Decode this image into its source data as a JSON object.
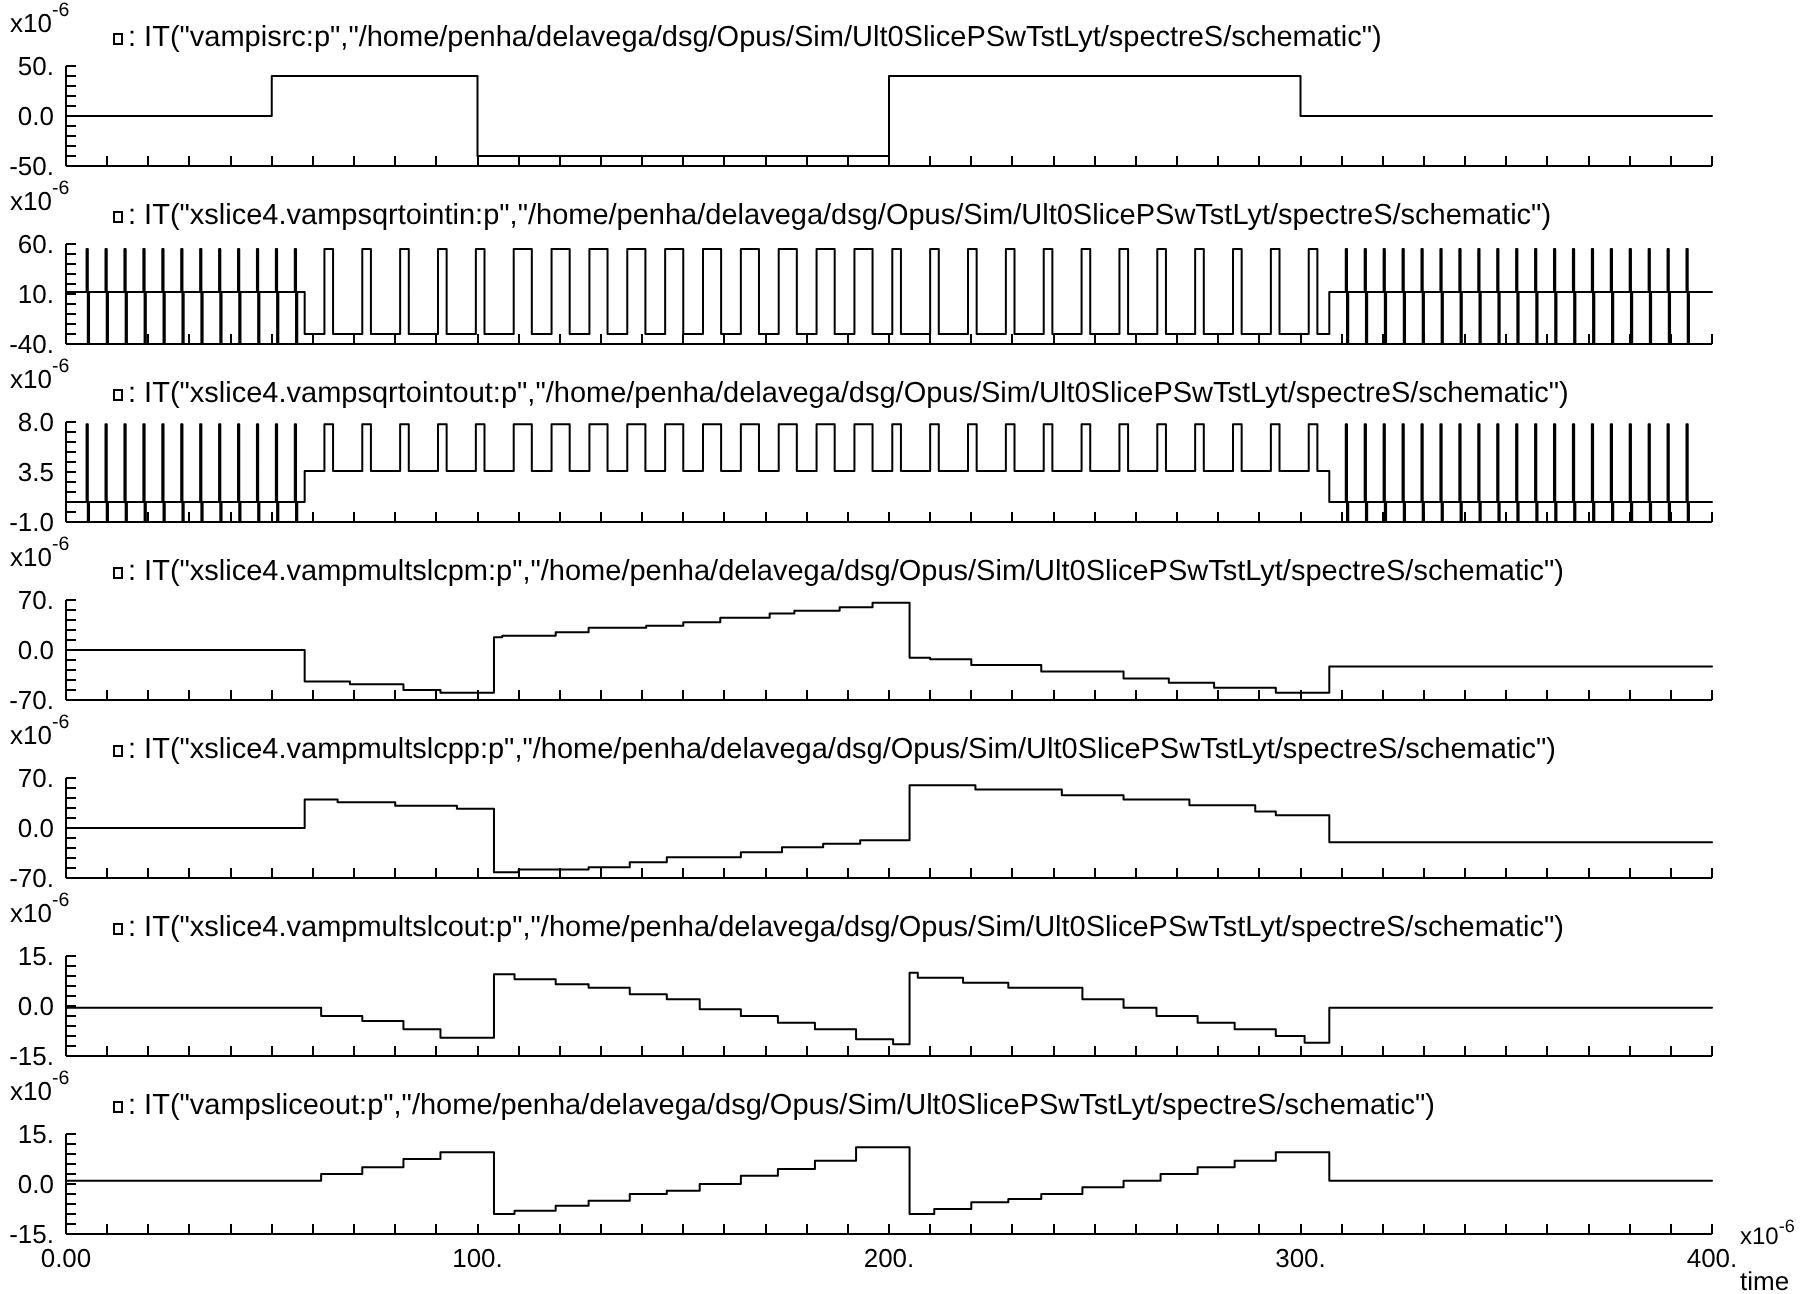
{
  "chart_data": [
    {
      "type": "step",
      "ylabel": "x10$^{-6}$",
      "legend": "top left",
      "tick_labels": "y",
      "xlim": [
        0,
        400
      ],
      "ylim": [
        -50,
        50
      ],
      "yticks": [
        {
          "value": -50,
          "label": "-50."
        },
        {
          "value": -40,
          "label": null
        },
        {
          "value": -30,
          "label": null
        },
        {
          "value": -20,
          "label": null
        },
        {
          "value": -10,
          "label": null
        },
        {
          "value": 0,
          "label": "0.0"
        },
        {
          "value": 10,
          "label": null
        },
        {
          "value": 20,
          "label": null
        },
        {
          "value": 30,
          "label": null
        },
        {
          "value": 40,
          "label": null
        },
        {
          "value": 50,
          "label": "50."
        }
      ],
      "series": [
        {
          "name": ": IT(\"vampisrc:p\",\"/home/penha/delavega/dsg/Opus/Sim/Ult0SlicePSwTstLyt/spectreS/schematic\")",
          "color": "#000000",
          "x": [
            0,
            50,
            100,
            200,
            300,
            400
          ],
          "values": [
            0,
            40,
            -40,
            40,
            0,
            0
          ]
        }
      ]
    },
    {
      "type": "step",
      "ylabel": "x10$^{-6}$",
      "legend": "top left",
      "tick_labels": "y",
      "xlim": [
        0,
        400
      ],
      "ylim": [
        -40,
        60
      ],
      "yticks": [
        {
          "value": -40,
          "label": "-40."
        },
        {
          "value": -30,
          "label": null
        },
        {
          "value": -20,
          "label": null
        },
        {
          "value": -10,
          "label": null
        },
        {
          "value": 0,
          "label": null
        },
        {
          "value": 10,
          "label": "10."
        },
        {
          "value": 20,
          "label": null
        },
        {
          "value": 30,
          "label": null
        },
        {
          "value": 40,
          "label": null
        },
        {
          "value": 50,
          "label": null
        },
        {
          "value": 60,
          "label": "60."
        }
      ],
      "series": [
        {
          "name": ": IT(\"xslice4.vampsqrtointin:p\",\"/home/penha/delavega/dsg/Opus/Sim/Ult0SlicePSwTstLyt/spectreS/schematic\")",
          "color": "#000000",
          "x": [
            0,
            5,
            5.3,
            5.6,
            9.6,
            9.9,
            10.2,
            14.2,
            14.5,
            14.8,
            18.8,
            19.1,
            19.4,
            23.4,
            23.7,
            24,
            28,
            28.3,
            28.6,
            32.6,
            32.9,
            33.2,
            37.2,
            37.5,
            37.8,
            41.8,
            42.1,
            42.4,
            46.4,
            46.7,
            47,
            51,
            51.3,
            51.6,
            55.6,
            55.9,
            56.2,
            58,
            62.8,
            64.9,
            72,
            74.1,
            81.2,
            83.3,
            90.4,
            92.5,
            99.6,
            101.7,
            108.8,
            113.2,
            118,
            122.4,
            127.2,
            131.6,
            136.4,
            140.8,
            145.6,
            150,
            154.8,
            159.2,
            164,
            168.4,
            173.2,
            177.6,
            182.4,
            186.8,
            191.6,
            196,
            200.8,
            202.9,
            210,
            212.1,
            219.2,
            221.3,
            228.4,
            230.5,
            237.6,
            239.7,
            246.8,
            248.9,
            256,
            258.1,
            265.2,
            267.3,
            274.4,
            276.5,
            283.6,
            285.7,
            292.8,
            294.9,
            302,
            304.1,
            307,
            311,
            311.3,
            311.6,
            315.6,
            315.9,
            316.2,
            320.2,
            320.5,
            320.8,
            324.8,
            325.1,
            325.4,
            329.4,
            329.7,
            330,
            334,
            334.3,
            334.6,
            338.6,
            338.9,
            339.2,
            343.2,
            343.5,
            343.8,
            347.8,
            348.1,
            348.4,
            352.4,
            352.7,
            353,
            357,
            357.3,
            357.6,
            361.6,
            361.9,
            362.2,
            366.2,
            366.5,
            366.8,
            370.8,
            371.1,
            371.4,
            375.4,
            375.7,
            376,
            380,
            380.3,
            380.6,
            384.6,
            384.9,
            385.2,
            389.2,
            389.5,
            389.8,
            393.8,
            394.1,
            394.4,
            400
          ],
          "values": [
            12,
            55,
            -39,
            12,
            55,
            -39,
            12,
            55,
            -39,
            12,
            55,
            -39,
            12,
            55,
            -39,
            12,
            55,
            -39,
            12,
            55,
            -39,
            12,
            55,
            -39,
            12,
            55,
            -39,
            12,
            55,
            -39,
            12,
            55,
            -39,
            12,
            55,
            -39,
            12,
            -30,
            55,
            -30,
            55,
            -30,
            55,
            -30,
            55,
            -30,
            55,
            -30,
            55,
            -30,
            55,
            -30,
            55,
            -30,
            55,
            -30,
            55,
            -30,
            55,
            -30,
            55,
            -30,
            55,
            -30,
            55,
            -30,
            55,
            -30,
            55,
            -30,
            55,
            -30,
            55,
            -30,
            55,
            -30,
            55,
            -30,
            55,
            -30,
            55,
            -30,
            55,
            -30,
            55,
            -30,
            55,
            -30,
            55,
            -30,
            55,
            -30,
            12,
            55,
            -39,
            12,
            55,
            -39,
            12,
            55,
            -39,
            12,
            55,
            -39,
            12,
            55,
            -39,
            12,
            55,
            -39,
            12,
            55,
            -39,
            12,
            55,
            -39,
            12,
            55,
            -39,
            12,
            55,
            -39,
            12,
            55,
            -39,
            12,
            55,
            -39,
            12,
            55,
            -39,
            12,
            55,
            -39,
            12,
            55,
            -39,
            12,
            55,
            -39,
            12,
            55,
            -39,
            12,
            55,
            -39,
            12,
            55,
            -39,
            12,
            12
          ]
        }
      ]
    },
    {
      "type": "step",
      "ylabel": "x10$^{-6}$",
      "legend": "top left",
      "tick_labels": "y",
      "xlim": [
        0,
        400
      ],
      "ylim": [
        -1,
        8
      ],
      "yticks": [
        {
          "value": -1,
          "label": "-1.0"
        },
        {
          "value": -0.1,
          "label": null
        },
        {
          "value": 0.8,
          "label": null
        },
        {
          "value": 1.7,
          "label": null
        },
        {
          "value": 2.6,
          "label": null
        },
        {
          "value": 3.5,
          "label": "3.5"
        },
        {
          "value": 4.4,
          "label": null
        },
        {
          "value": 5.3,
          "label": null
        },
        {
          "value": 6.2,
          "label": null
        },
        {
          "value": 7.1,
          "label": null
        },
        {
          "value": 8,
          "label": "8.0"
        }
      ],
      "series": [
        {
          "name": ": IT(\"xslice4.vampsqrtointout:p\",\"/home/penha/delavega/dsg/Opus/Sim/Ult0SlicePSwTstLyt/spectreS/schematic\")",
          "color": "#000000",
          "x": [
            0,
            5,
            5.3,
            5.6,
            9.6,
            9.9,
            10.2,
            14.2,
            14.5,
            14.8,
            18.8,
            19.1,
            19.4,
            23.4,
            23.7,
            24,
            28,
            28.3,
            28.6,
            32.6,
            32.9,
            33.2,
            37.2,
            37.5,
            37.8,
            41.8,
            42.1,
            42.4,
            46.4,
            46.7,
            47,
            51,
            51.3,
            51.6,
            55.6,
            55.9,
            56.2,
            58,
            62.8,
            64.9,
            72,
            74.1,
            81.2,
            83.3,
            90.4,
            92.5,
            99.6,
            101.7,
            108.8,
            113.2,
            118,
            122.4,
            127.2,
            131.6,
            136.4,
            140.8,
            145.6,
            150,
            154.8,
            159.2,
            164,
            168.4,
            173.2,
            177.6,
            182.4,
            186.8,
            191.6,
            196,
            200.8,
            202.9,
            210,
            212.1,
            219.2,
            221.3,
            228.4,
            230.5,
            237.6,
            239.7,
            246.8,
            248.9,
            256,
            258.1,
            265.2,
            267.3,
            274.4,
            276.5,
            283.6,
            285.7,
            292.8,
            294.9,
            302,
            304.1,
            307,
            311,
            311.3,
            311.6,
            315.6,
            315.9,
            316.2,
            320.2,
            320.5,
            320.8,
            324.8,
            325.1,
            325.4,
            329.4,
            329.7,
            330,
            334,
            334.3,
            334.6,
            338.6,
            338.9,
            339.2,
            343.2,
            343.5,
            343.8,
            347.8,
            348.1,
            348.4,
            352.4,
            352.7,
            353,
            357,
            357.3,
            357.6,
            361.6,
            361.9,
            362.2,
            366.2,
            366.5,
            366.8,
            370.8,
            371.1,
            371.4,
            375.4,
            375.7,
            376,
            380,
            380.3,
            380.6,
            384.6,
            384.9,
            385.2,
            389.2,
            389.5,
            389.8,
            393.8,
            394.1,
            394.4,
            400
          ],
          "values": [
            0.8,
            7.8,
            -0.9,
            0.8,
            7.8,
            -0.9,
            0.8,
            7.8,
            -0.9,
            0.8,
            7.8,
            -0.9,
            0.8,
            7.8,
            -0.9,
            0.8,
            7.8,
            -0.9,
            0.8,
            7.8,
            -0.9,
            0.8,
            7.8,
            -0.9,
            0.8,
            7.8,
            -0.9,
            0.8,
            7.8,
            -0.9,
            0.8,
            7.8,
            -0.9,
            0.8,
            7.8,
            -0.9,
            0.8,
            3.6,
            7.8,
            3.6,
            7.8,
            3.6,
            7.8,
            3.6,
            7.8,
            3.6,
            7.8,
            3.6,
            7.8,
            3.6,
            7.8,
            3.6,
            7.8,
            3.6,
            7.8,
            3.6,
            7.8,
            3.6,
            7.8,
            3.6,
            7.8,
            3.6,
            7.8,
            3.6,
            7.8,
            3.6,
            7.8,
            3.6,
            7.8,
            3.6,
            7.8,
            3.6,
            7.8,
            3.6,
            7.8,
            3.6,
            7.8,
            3.6,
            7.8,
            3.6,
            7.8,
            3.6,
            7.8,
            3.6,
            7.8,
            3.6,
            7.8,
            3.6,
            7.8,
            3.6,
            7.8,
            3.6,
            0.8,
            7.8,
            -0.9,
            0.8,
            7.8,
            -0.9,
            0.8,
            7.8,
            -0.9,
            0.8,
            7.8,
            -0.9,
            0.8,
            7.8,
            -0.9,
            0.8,
            7.8,
            -0.9,
            0.8,
            7.8,
            -0.9,
            0.8,
            7.8,
            -0.9,
            0.8,
            7.8,
            -0.9,
            0.8,
            7.8,
            -0.9,
            0.8,
            7.8,
            -0.9,
            0.8,
            7.8,
            -0.9,
            0.8,
            7.8,
            -0.9,
            0.8,
            7.8,
            -0.9,
            0.8,
            7.8,
            -0.9,
            0.8,
            7.8,
            -0.9,
            0.8,
            7.8,
            -0.9,
            0.8,
            7.8,
            -0.9,
            0.8,
            7.8,
            -0.9,
            0.8,
            0.8
          ]
        }
      ]
    },
    {
      "type": "step",
      "ylabel": "x10$^{-6}$",
      "legend": "top left",
      "tick_labels": "y",
      "xlim": [
        0,
        400
      ],
      "ylim": [
        -70,
        70
      ],
      "yticks": [
        {
          "value": -70,
          "label": "-70."
        },
        {
          "value": -56,
          "label": null
        },
        {
          "value": -42,
          "label": null
        },
        {
          "value": -28,
          "label": null
        },
        {
          "value": -14,
          "label": null
        },
        {
          "value": 0,
          "label": "0.0"
        },
        {
          "value": 14,
          "label": null
        },
        {
          "value": 28,
          "label": null
        },
        {
          "value": 42,
          "label": null
        },
        {
          "value": 56,
          "label": null
        },
        {
          "value": 70,
          "label": "70."
        }
      ],
      "series": [
        {
          "name": ": IT(\"xslice4.vampmultslcpm:p\",\"/home/penha/delavega/dsg/Opus/Sim/Ult0SlicePSwTstLyt/spectreS/schematic\")",
          "color": "#000000",
          "x": [
            0,
            58,
            69,
            82,
            91,
            104,
            106,
            119,
            127,
            141,
            150,
            159,
            171,
            177,
            188,
            196,
            205,
            210,
            220,
            237,
            257,
            268,
            279,
            294,
            307,
            400
          ],
          "values": [
            0,
            -44,
            -48,
            -56,
            -60,
            18,
            20,
            25,
            31,
            34,
            39,
            45,
            51,
            55,
            60,
            66,
            -11,
            -13,
            -21,
            -30,
            -40,
            -46,
            -53,
            -60,
            -23,
            -23
          ]
        }
      ]
    },
    {
      "type": "step",
      "ylabel": "x10$^{-6}$",
      "legend": "top left",
      "tick_labels": "y",
      "xlim": [
        0,
        400
      ],
      "ylim": [
        -70,
        70
      ],
      "yticks": [
        {
          "value": -70,
          "label": "-70."
        },
        {
          "value": -56,
          "label": null
        },
        {
          "value": -42,
          "label": null
        },
        {
          "value": -28,
          "label": null
        },
        {
          "value": -14,
          "label": null
        },
        {
          "value": 0,
          "label": "0.0"
        },
        {
          "value": 14,
          "label": null
        },
        {
          "value": 28,
          "label": null
        },
        {
          "value": 42,
          "label": null
        },
        {
          "value": 56,
          "label": null
        },
        {
          "value": 70,
          "label": "70."
        }
      ],
      "series": [
        {
          "name": ": IT(\"xslice4.vampmultslcpp:p\",\"/home/penha/delavega/dsg/Opus/Sim/Ult0SlicePSwTstLyt/spectreS/schematic\")",
          "color": "#000000",
          "x": [
            0,
            58,
            66,
            80,
            95,
            104,
            110,
            127,
            137,
            146,
            164,
            174,
            184,
            193,
            205,
            221,
            242,
            257,
            273,
            289,
            294,
            307,
            400
          ],
          "values": [
            0,
            40,
            36,
            31,
            27,
            -62,
            -58,
            -55,
            -48,
            -41,
            -34,
            -27,
            -22,
            -17,
            60,
            54,
            46,
            40,
            32,
            23,
            18,
            -20,
            -20
          ]
        }
      ]
    },
    {
      "type": "step",
      "ylabel": "x10$^{-6}$",
      "legend": "top left",
      "tick_labels": "y",
      "xlim": [
        0,
        400
      ],
      "ylim": [
        -15,
        15
      ],
      "yticks": [
        {
          "value": -15,
          "label": "-15."
        },
        {
          "value": -12,
          "label": null
        },
        {
          "value": -9,
          "label": null
        },
        {
          "value": -6,
          "label": null
        },
        {
          "value": -3,
          "label": null
        },
        {
          "value": 0,
          "label": "0.0"
        },
        {
          "value": 3,
          "label": null
        },
        {
          "value": 6,
          "label": null
        },
        {
          "value": 9,
          "label": null
        },
        {
          "value": 12,
          "label": null
        },
        {
          "value": 15,
          "label": "15."
        }
      ],
      "series": [
        {
          "name": ": IT(\"xslice4.vampmultslcout:p\",\"/home/penha/delavega/dsg/Opus/Sim/Ult0SlicePSwTstLyt/spectreS/schematic\")",
          "color": "#000000",
          "x": [
            0,
            62,
            72,
            82,
            91,
            104,
            109,
            119,
            127,
            137,
            146,
            154,
            164,
            173,
            182,
            192,
            201,
            205,
            207,
            218,
            229,
            247,
            257,
            265,
            275,
            284,
            294,
            301,
            307,
            400
          ],
          "values": [
            -0.5,
            -3,
            -4.5,
            -7,
            -9.5,
            9.5,
            8,
            6.5,
            5.5,
            3.5,
            2,
            -1,
            -3,
            -5,
            -7,
            -10,
            -11.5,
            10,
            8.5,
            7,
            5.5,
            2,
            -0.5,
            -3,
            -5,
            -7,
            -9,
            -11,
            -0.5,
            -0.5
          ]
        }
      ]
    },
    {
      "type": "step",
      "ylabel": "x10$^{-6}$",
      "legend": "top left",
      "xlabel": "time",
      "annotations": [
        "x10$^{-6}$"
      ],
      "xlim": [
        0,
        400
      ],
      "xticks": [
        {
          "value": 0,
          "label": "0.00"
        },
        {
          "value": 10,
          "label": null
        },
        {
          "value": 20,
          "label": null
        },
        {
          "value": 30,
          "label": null
        },
        {
          "value": 40,
          "label": null
        },
        {
          "value": 50,
          "label": null
        },
        {
          "value": 60,
          "label": null
        },
        {
          "value": 70,
          "label": null
        },
        {
          "value": 80,
          "label": null
        },
        {
          "value": 90,
          "label": null
        },
        {
          "value": 100,
          "label": "100."
        },
        {
          "value": 110,
          "label": null
        },
        {
          "value": 120,
          "label": null
        },
        {
          "value": 130,
          "label": null
        },
        {
          "value": 140,
          "label": null
        },
        {
          "value": 150,
          "label": null
        },
        {
          "value": 160,
          "label": null
        },
        {
          "value": 170,
          "label": null
        },
        {
          "value": 180,
          "label": null
        },
        {
          "value": 190,
          "label": null
        },
        {
          "value": 200,
          "label": "200."
        },
        {
          "value": 210,
          "label": null
        },
        {
          "value": 220,
          "label": null
        },
        {
          "value": 230,
          "label": null
        },
        {
          "value": 240,
          "label": null
        },
        {
          "value": 250,
          "label": null
        },
        {
          "value": 260,
          "label": null
        },
        {
          "value": 270,
          "label": null
        },
        {
          "value": 280,
          "label": null
        },
        {
          "value": 290,
          "label": null
        },
        {
          "value": 300,
          "label": "300."
        },
        {
          "value": 310,
          "label": null
        },
        {
          "value": 320,
          "label": null
        },
        {
          "value": 330,
          "label": null
        },
        {
          "value": 340,
          "label": null
        },
        {
          "value": 350,
          "label": null
        },
        {
          "value": 360,
          "label": null
        },
        {
          "value": 370,
          "label": null
        },
        {
          "value": 380,
          "label": null
        },
        {
          "value": 390,
          "label": null
        },
        {
          "value": 400,
          "label": "400."
        }
      ],
      "ylim": [
        -15,
        15
      ],
      "yticks": [
        {
          "value": -15,
          "label": "-15."
        },
        {
          "value": -12,
          "label": null
        },
        {
          "value": -9,
          "label": null
        },
        {
          "value": -6,
          "label": null
        },
        {
          "value": -3,
          "label": null
        },
        {
          "value": 0,
          "label": "0.0"
        },
        {
          "value": 3,
          "label": null
        },
        {
          "value": 6,
          "label": null
        },
        {
          "value": 9,
          "label": null
        },
        {
          "value": 12,
          "label": null
        },
        {
          "value": 15,
          "label": "15."
        }
      ],
      "series": [
        {
          "name": ": IT(\"vampsliceout:p\",\"/home/penha/delavega/dsg/Opus/Sim/Ult0SlicePSwTstLyt/spectreS/schematic\")",
          "color": "#000000",
          "x": [
            0,
            62,
            72,
            82,
            91,
            104,
            109,
            119,
            127,
            137,
            146,
            154,
            164,
            173,
            182,
            192,
            205,
            211,
            220,
            229,
            237,
            247,
            257,
            266,
            275,
            284,
            294,
            307,
            400
          ],
          "values": [
            1,
            3,
            5,
            7.5,
            9.5,
            -9,
            -8,
            -6.5,
            -5,
            -3,
            -2,
            0,
            2.5,
            4.5,
            7,
            11,
            -9,
            -7.5,
            -5.5,
            -4.5,
            -3,
            -1,
            1,
            3,
            5,
            7,
            9.5,
            1,
            1
          ]
        }
      ]
    }
  ]
}
